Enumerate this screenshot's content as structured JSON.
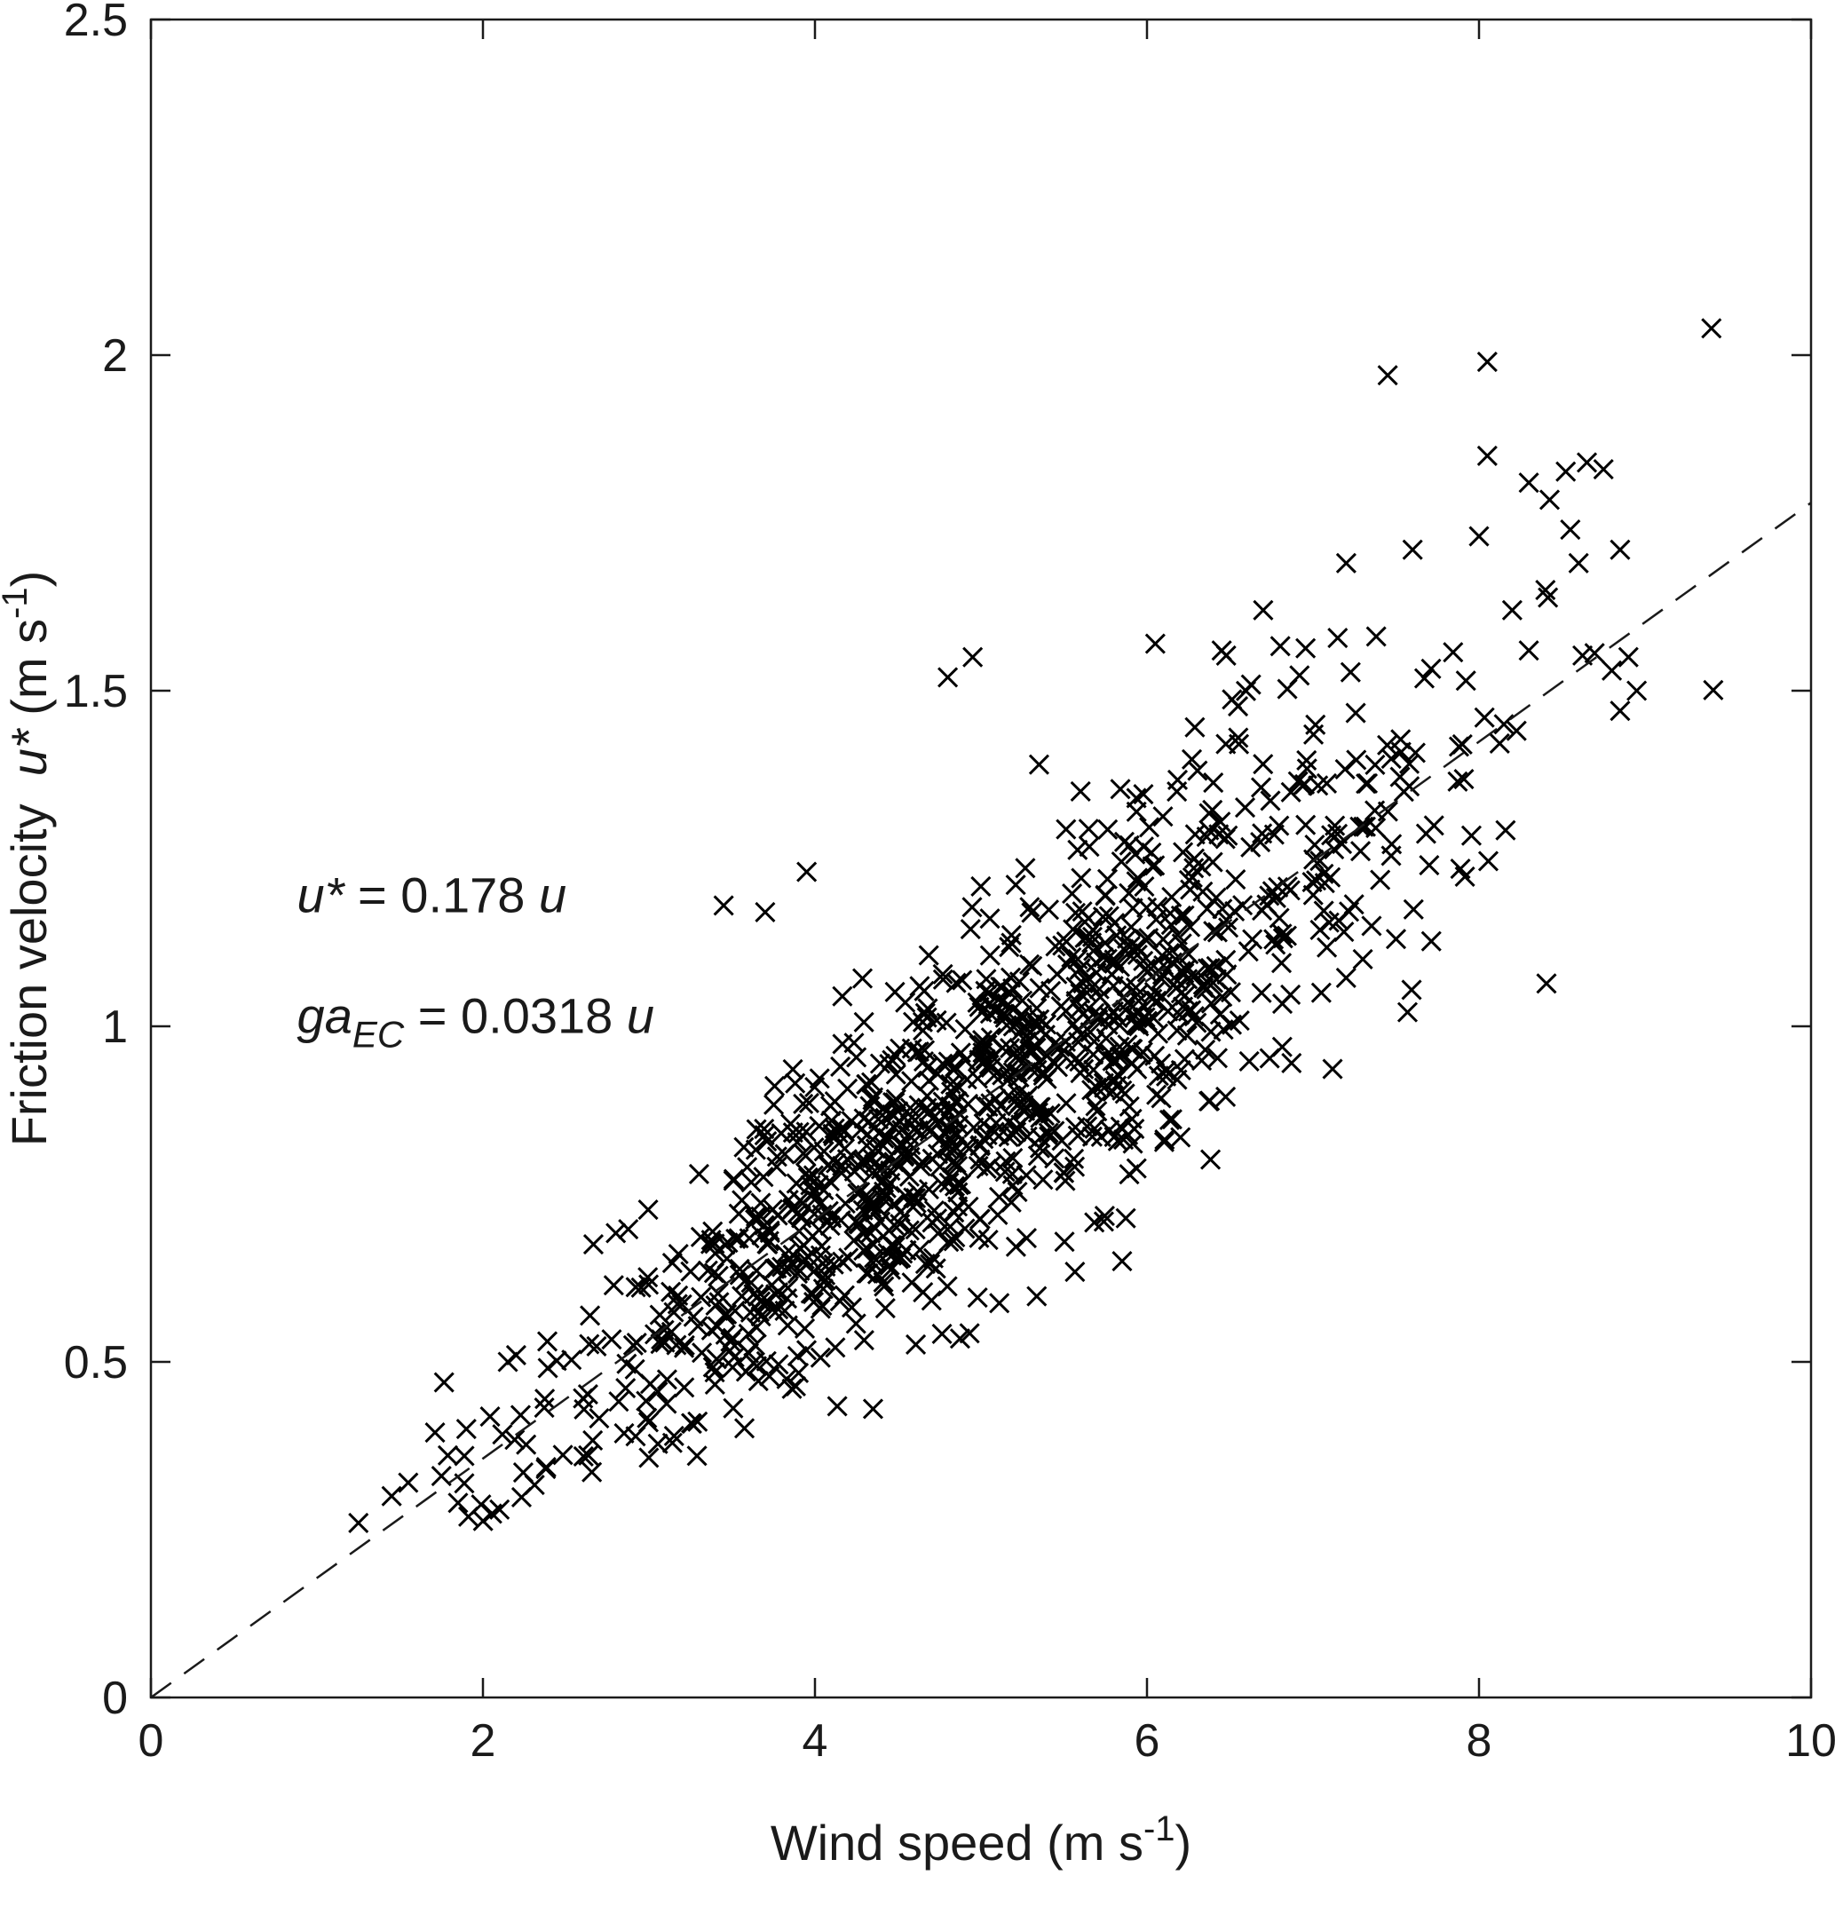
{
  "figure": {
    "background": "#ffffff",
    "axis_color": "#1a1a1a",
    "marker_color": "#000000"
  },
  "chart_data": {
    "type": "scatter",
    "title": "",
    "marker": "x",
    "grid": false,
    "legend": "none",
    "xlabel_parts": {
      "main": "Wind speed (m s",
      "sup": "-1",
      "close": ")"
    },
    "ylabel_parts": {
      "main": "Friction velocity  ",
      "var": "u*",
      "rest": " (m s",
      "sup": "-1",
      "close": ")"
    },
    "xlim": [
      0,
      10
    ],
    "ylim": [
      0,
      2.5
    ],
    "xticks": [
      0,
      2,
      4,
      6,
      8,
      10
    ],
    "xtick_labels": [
      "0",
      "2",
      "4",
      "6",
      "8",
      "10"
    ],
    "yticks": [
      0,
      0.5,
      1,
      1.5,
      2,
      2.5
    ],
    "ytick_labels": [
      "0",
      "0.5",
      "1",
      "1.5",
      "2",
      "2.5"
    ],
    "fit_line": {
      "style": "dashed",
      "slope": 0.178,
      "intercept": 0,
      "x_start": 0,
      "x_end": 10
    },
    "equations": {
      "ustar_slope": 0.178,
      "ga_ec_slope": 0.0318
    },
    "annotations": [
      {
        "id": "eq-ustar",
        "lead_italic": "u*",
        "mid": " = 0.178 ",
        "tail_italic": "u",
        "x": 0.88,
        "y": 1.17
      },
      {
        "id": "eq-gaec",
        "lead_italic": "ga",
        "sub_italic": "EC",
        "mid": " = 0.0318 ",
        "tail_italic": "u",
        "x": 0.88,
        "y": 0.99
      }
    ],
    "scatter_model": {
      "description": "Dense cloud of x-markers of half-hourly observations; friction velocity scales with wind speed, u* ≈ 0.178 u, scatter grows with wind speed.",
      "n_points": 1150,
      "seed": 42,
      "slope": 0.178,
      "x_mean": 5.0,
      "x_sd": 1.3,
      "x_min": 1.2,
      "x_max": 9.45,
      "noise_base": 0.05,
      "noise_scale": 0.016,
      "noise_clip_sigma": 2.6,
      "y_min": 0.24
    },
    "outlier_points": [
      [
        4.8,
        1.52
      ],
      [
        4.95,
        1.55
      ],
      [
        5.35,
        1.39
      ],
      [
        5.6,
        1.35
      ],
      [
        6.05,
        1.57
      ],
      [
        6.45,
        1.56
      ],
      [
        6.55,
        1.43
      ],
      [
        3.45,
        1.18
      ],
      [
        3.7,
        1.17
      ],
      [
        3.95,
        1.23
      ],
      [
        7.45,
        1.97
      ],
      [
        8.05,
        1.99
      ],
      [
        9.4,
        2.04
      ],
      [
        8.05,
        1.85
      ],
      [
        8.3,
        1.81
      ],
      [
        8.65,
        1.84
      ],
      [
        8.75,
        1.83
      ],
      [
        6.7,
        1.62
      ],
      [
        7.2,
        1.69
      ],
      [
        7.6,
        1.71
      ],
      [
        8.0,
        1.73
      ],
      [
        8.2,
        1.62
      ],
      [
        8.4,
        1.65
      ],
      [
        8.55,
        1.74
      ],
      [
        8.6,
        1.69
      ],
      [
        8.85,
        1.71
      ],
      [
        8.9,
        1.55
      ],
      [
        8.95,
        1.5
      ],
      [
        8.8,
        1.53
      ],
      [
        8.85,
        1.47
      ],
      [
        4.35,
        0.43
      ],
      [
        5.85,
        0.65
      ],
      [
        1.25,
        0.26
      ],
      [
        1.45,
        0.3
      ],
      [
        1.55,
        0.32
      ],
      [
        1.75,
        0.33
      ],
      [
        1.85,
        0.29
      ],
      [
        2.1,
        0.28
      ],
      [
        1.9,
        0.4
      ],
      [
        2.15,
        0.5
      ],
      [
        2.2,
        0.51
      ],
      [
        7.5,
        1.13
      ],
      [
        7.7,
        1.24
      ],
      [
        7.9,
        1.42
      ],
      [
        8.15,
        1.45
      ],
      [
        8.3,
        1.56
      ],
      [
        7.05,
        1.05
      ],
      [
        7.3,
        1.1
      ]
    ]
  }
}
